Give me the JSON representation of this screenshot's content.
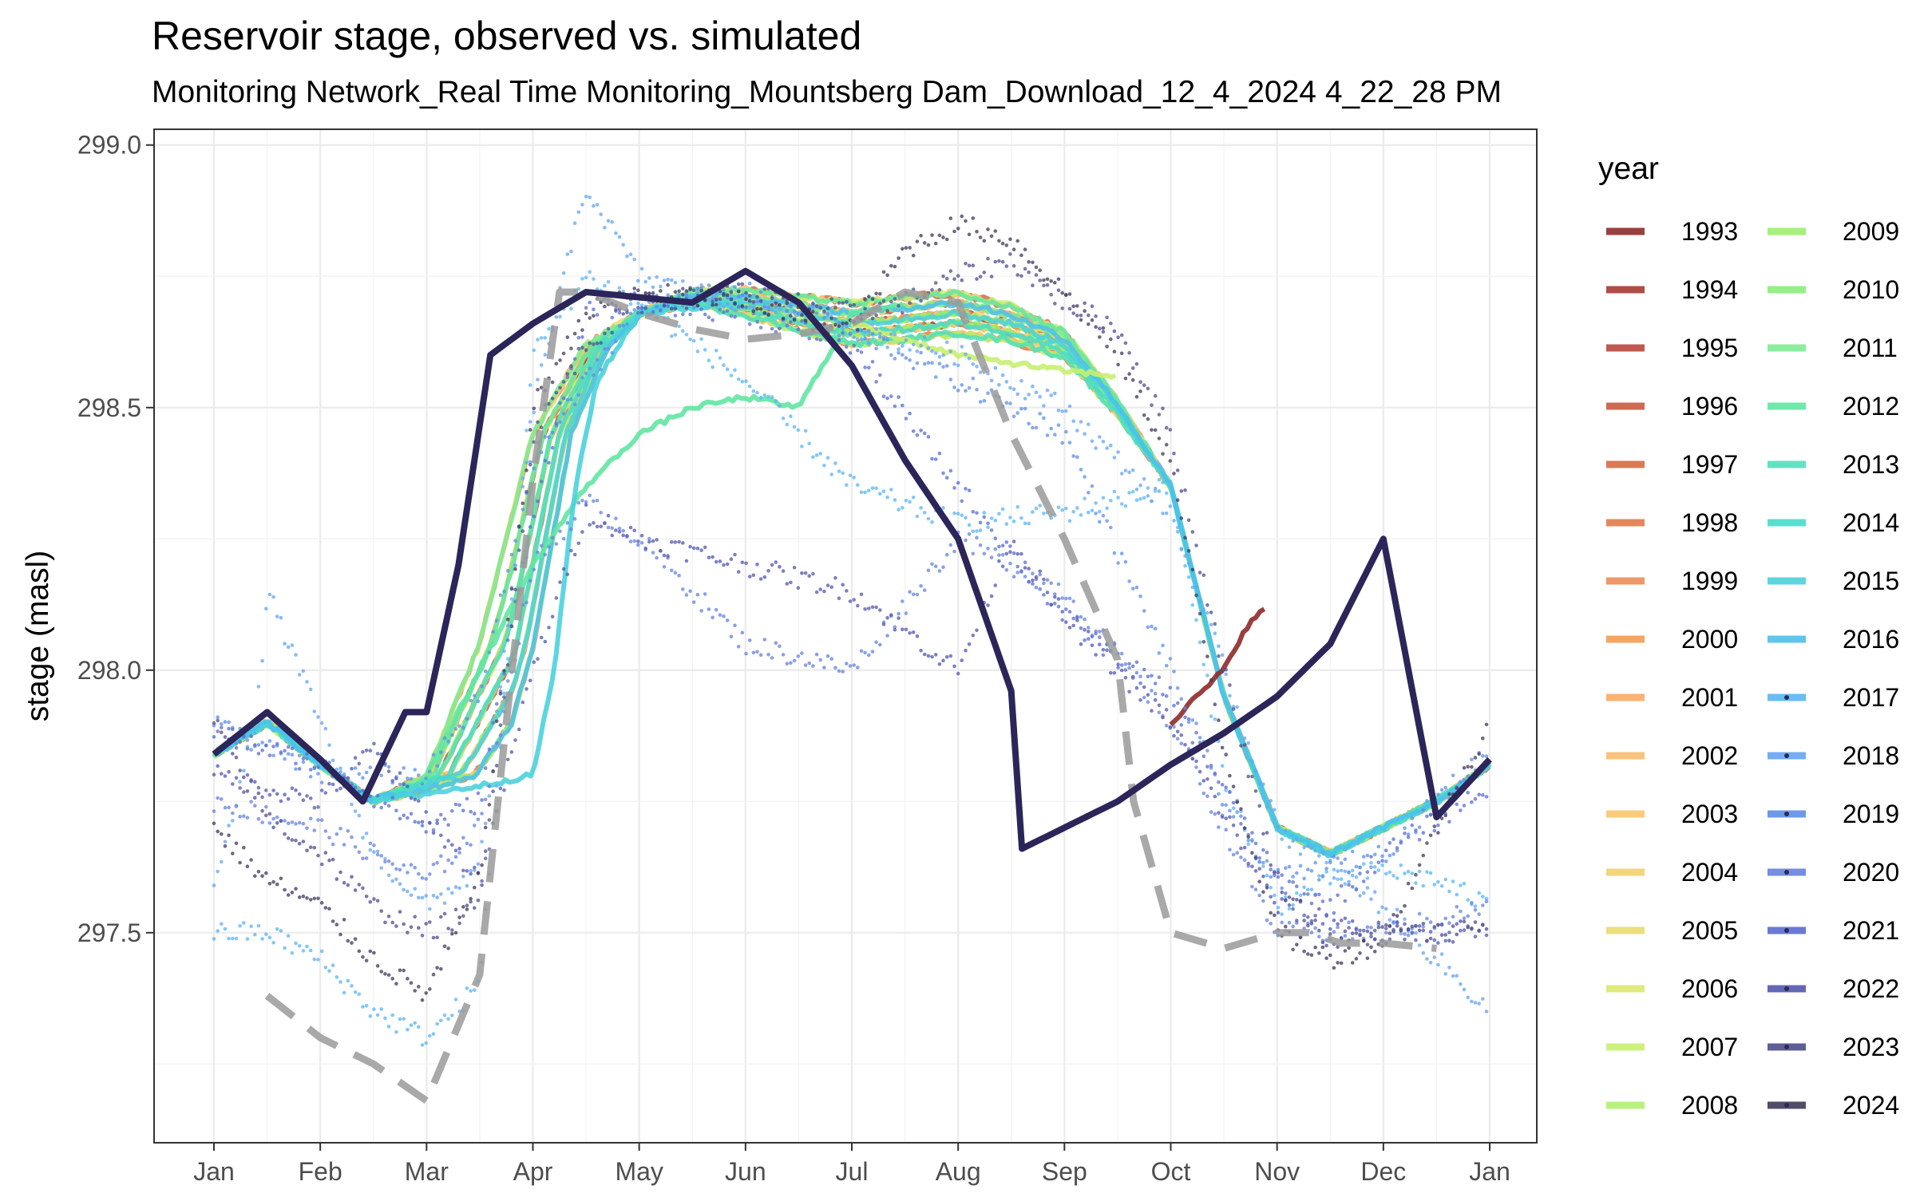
{
  "chart_data": {
    "type": "line",
    "title": "Reservoir stage, observed vs. simulated",
    "subtitle": "Monitoring Network_Real Time Monitoring_Mountsberg  Dam_Download_12_4_2024 4_22_28 PM",
    "xlabel": "",
    "ylabel": "stage (masl)",
    "ylim": [
      297.1,
      299.03
    ],
    "x_ticks": [
      "Jan",
      "Feb",
      "Mar",
      "Apr",
      "May",
      "Jun",
      "Jul",
      "Aug",
      "Sep",
      "Oct",
      "Nov",
      "Dec",
      "Jan"
    ],
    "y_ticks": [
      "297.5",
      "298.0",
      "298.5",
      "299.0"
    ],
    "y_tick_values": [
      297.5,
      298.0,
      298.5,
      299.0
    ],
    "grid": true,
    "legend": {
      "title": "year",
      "position": "right",
      "columns": 2
    },
    "years": [
      {
        "name": "1993",
        "color": "#8f2a2a"
      },
      {
        "name": "1994",
        "color": "#a63a32"
      },
      {
        "name": "1995",
        "color": "#b8473c"
      },
      {
        "name": "1996",
        "color": "#c85a40"
      },
      {
        "name": "1997",
        "color": "#d56a44"
      },
      {
        "name": "1998",
        "color": "#e07a4a"
      },
      {
        "name": "1999",
        "color": "#ec8c56"
      },
      {
        "name": "2000",
        "color": "#f59b4e"
      },
      {
        "name": "2001",
        "color": "#f8ab63"
      },
      {
        "name": "2002",
        "color": "#fbbb6e"
      },
      {
        "name": "2003",
        "color": "#f8c56d"
      },
      {
        "name": "2004",
        "color": "#f2d070"
      },
      {
        "name": "2005",
        "color": "#e9db70"
      },
      {
        "name": "2006",
        "color": "#dbe86e"
      },
      {
        "name": "2007",
        "color": "#c8f070"
      },
      {
        "name": "2008",
        "color": "#b0f06e"
      },
      {
        "name": "2009",
        "color": "#9bf06a"
      },
      {
        "name": "2010",
        "color": "#88ee78"
      },
      {
        "name": "2011",
        "color": "#7eeb94"
      },
      {
        "name": "2012",
        "color": "#62e6a2"
      },
      {
        "name": "2013",
        "color": "#4fe0bb"
      },
      {
        "name": "2014",
        "color": "#48dcca"
      },
      {
        "name": "2015",
        "color": "#4bd1dc"
      },
      {
        "name": "2016",
        "color": "#4cc0ec"
      },
      {
        "name": "2017",
        "color": "#5bb4f4"
      },
      {
        "name": "2018",
        "color": "#64a4f2"
      },
      {
        "name": "2019",
        "color": "#5c8ee8"
      },
      {
        "name": "2020",
        "color": "#6681df"
      },
      {
        "name": "2021",
        "color": "#5a6ccf"
      },
      {
        "name": "2022",
        "color": "#5357ad"
      },
      {
        "name": "2023",
        "color": "#4f4c8e"
      },
      {
        "name": "2024",
        "color": "#40375a"
      }
    ],
    "simulated": {
      "color": "#9a9a9a",
      "style": "dashed",
      "x": [
        0.5,
        1.0,
        1.5,
        2.0,
        2.5,
        2.75,
        3.0,
        3.25,
        3.5,
        3.75,
        4.0,
        4.5,
        5.0,
        5.5,
        6.0,
        6.5,
        7.0,
        7.5,
        8.0,
        8.5,
        8.65,
        9.0,
        9.5,
        10.0,
        10.3,
        10.6,
        11.0,
        11.5
      ],
      "y": [
        297.38,
        297.3,
        297.25,
        297.18,
        297.42,
        297.9,
        298.36,
        298.72,
        298.72,
        298.7,
        298.68,
        298.65,
        298.63,
        298.64,
        298.66,
        298.72,
        298.7,
        298.45,
        298.25,
        298.02,
        297.75,
        297.5,
        297.47,
        297.5,
        297.5,
        297.48,
        297.48,
        297.47
      ]
    },
    "envelope": {
      "name": "2024",
      "color": "#2b2559",
      "x": [
        0,
        0.5,
        1.0,
        1.4,
        1.8,
        2.0,
        2.3,
        2.6,
        3.0,
        3.5,
        4.0,
        4.5,
        5.0,
        5.5,
        6.0,
        6.5,
        7.0,
        7.5,
        7.6,
        8.0,
        8.5,
        9.0,
        9.5,
        10.0,
        10.5,
        11.0,
        11.5,
        12.0
      ],
      "y": [
        297.84,
        297.92,
        297.83,
        297.75,
        297.92,
        297.92,
        298.2,
        298.6,
        298.66,
        298.72,
        298.71,
        298.7,
        298.76,
        298.7,
        298.58,
        298.4,
        298.25,
        297.96,
        297.66,
        297.7,
        297.75,
        297.82,
        297.88,
        297.95,
        298.05,
        298.25,
        297.72,
        297.83
      ]
    }
  }
}
